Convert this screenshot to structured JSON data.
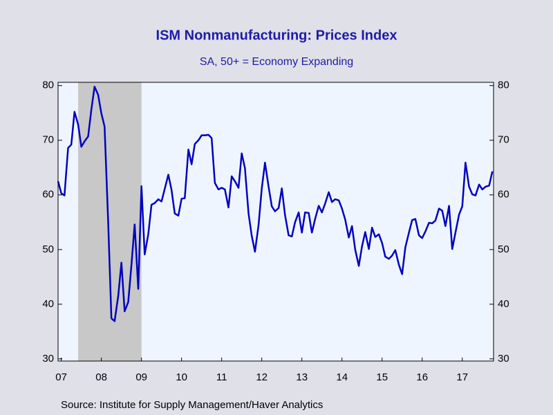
{
  "chart_data": {
    "type": "line",
    "title": "ISM Nonmanufacturing: Prices Index",
    "subtitle": "SA, 50+ = Economy Expanding",
    "source": "Source:  Institute for Supply Management/Haver Analytics",
    "x": [
      2007.42,
      2007.5,
      2007.58,
      2007.67,
      2007.75,
      2007.83,
      2007.92,
      2008,
      2008.08,
      2008.17,
      2008.25,
      2008.33,
      2008.42,
      2008.5,
      2008.58,
      2008.67,
      2008.75,
      2008.83,
      2008.92,
      2009,
      2009.08,
      2009.17,
      2009.25,
      2009.33,
      2009.42,
      2009.5,
      2009.58,
      2009.67,
      2009.75,
      2009.83,
      2009.92,
      2010,
      2010.08,
      2010.17,
      2010.25,
      2010.33,
      2010.42,
      2010.5,
      2010.58,
      2010.67,
      2010.75,
      2010.83,
      2010.92,
      2011,
      2011.08,
      2011.17,
      2011.25,
      2011.33,
      2011.42,
      2011.5,
      2011.58,
      2011.67,
      2011.75,
      2011.83,
      2011.92,
      2012,
      2012.08,
      2012.17,
      2012.25,
      2012.33,
      2012.42,
      2012.5,
      2012.58,
      2012.67,
      2012.75,
      2012.83,
      2012.92,
      2013,
      2013.08,
      2013.17,
      2013.25,
      2013.33,
      2013.42,
      2013.5,
      2013.58,
      2013.67,
      2013.75,
      2013.83,
      2013.92,
      2014,
      2014.08,
      2014.17,
      2014.25,
      2014.33,
      2014.42,
      2014.5,
      2014.58,
      2014.67,
      2014.75,
      2014.83,
      2014.92,
      2015,
      2015.08,
      2015.17,
      2015.25,
      2015.33,
      2015.42,
      2015.5,
      2015.58,
      2015.67,
      2015.75,
      2015.83,
      2015.92,
      2016,
      2016.08,
      2016.17,
      2016.25,
      2016.33,
      2016.42,
      2016.5,
      2016.58,
      2016.67,
      2016.75,
      2016.83,
      2016.92,
      2017,
      2017.08,
      2017.17,
      2017.25,
      2017.33,
      2017.42,
      2017.5,
      2017.58,
      2017.67,
      2017.75,
      2017.83,
      2017.92,
      2018,
      2018.08,
      2018.17,
      2018.25
    ],
    "series": [
      {
        "color": "#0000c0",
        "values": [
          62.5,
          60.3,
          59.9,
          68.6,
          69.2,
          75.2,
          72.9,
          68.8,
          69.8,
          70.7,
          75.6,
          79.8,
          78.3,
          74.9,
          72.5,
          55,
          37.4,
          36.9,
          41.5,
          47.6,
          38.7,
          40.4,
          47.2,
          54.6,
          42.8,
          61.6,
          49.1,
          52.8,
          58.2,
          58.5,
          59.2,
          58.8,
          61.1,
          63.7,
          60.9,
          56.6,
          56.2,
          59.3,
          59.4,
          68.3,
          65.6,
          69.3,
          70.0,
          70.9,
          70.9,
          71.0,
          70.4,
          62.2,
          61.0,
          61.3,
          61.0,
          57.7,
          63.4,
          62.5,
          61.3,
          67.6,
          64.9,
          56.6,
          52.5,
          49.6,
          54.5,
          61.2,
          65.9,
          61.5,
          57.9,
          57.0,
          57.6,
          61.2,
          56.3,
          52.6,
          52.4,
          55.0,
          56.8,
          53.1,
          56.8,
          56.7,
          53.1,
          55.6,
          58.0,
          56.8,
          58.4,
          60.5,
          58.7,
          59.2,
          59.0,
          57.5,
          55.5,
          52.2,
          54.3,
          50.0,
          47.0,
          50.6,
          53.2,
          50.1,
          54.0,
          52.3,
          52.8,
          51.2,
          48.7,
          48.3,
          48.9,
          49.9,
          47.2,
          45.5,
          50.4,
          53.1,
          55.4,
          55.6,
          52.6,
          52.1,
          53.3,
          54.9,
          54.8,
          55.3,
          57.5,
          57.1,
          54.3,
          58.0,
          50.1,
          53.1,
          56.4,
          57.9,
          65.9,
          61.5,
          60.1,
          59.9,
          61.9,
          61.0,
          61.5,
          61.7,
          64.3
        ]
      }
    ],
    "recession": [
      2007.92,
      2009.5
    ],
    "xlim": [
      2007.42,
      2018.28
    ],
    "xticks": [
      {
        "value": 2007.5,
        "label": "07"
      },
      {
        "value": 2008.5,
        "label": "08"
      },
      {
        "value": 2009.5,
        "label": "09"
      },
      {
        "value": 2010.5,
        "label": "10"
      },
      {
        "value": 2011.5,
        "label": "11"
      },
      {
        "value": 2012.5,
        "label": "12"
      },
      {
        "value": 2013.5,
        "label": "13"
      },
      {
        "value": 2014.5,
        "label": "14"
      },
      {
        "value": 2015.5,
        "label": "15"
      },
      {
        "value": 2016.5,
        "label": "16"
      },
      {
        "value": 2017.5,
        "label": "17"
      }
    ],
    "ylim": [
      29.6,
      80.6
    ],
    "yticks": [
      30,
      40,
      50,
      60,
      70,
      80
    ]
  }
}
